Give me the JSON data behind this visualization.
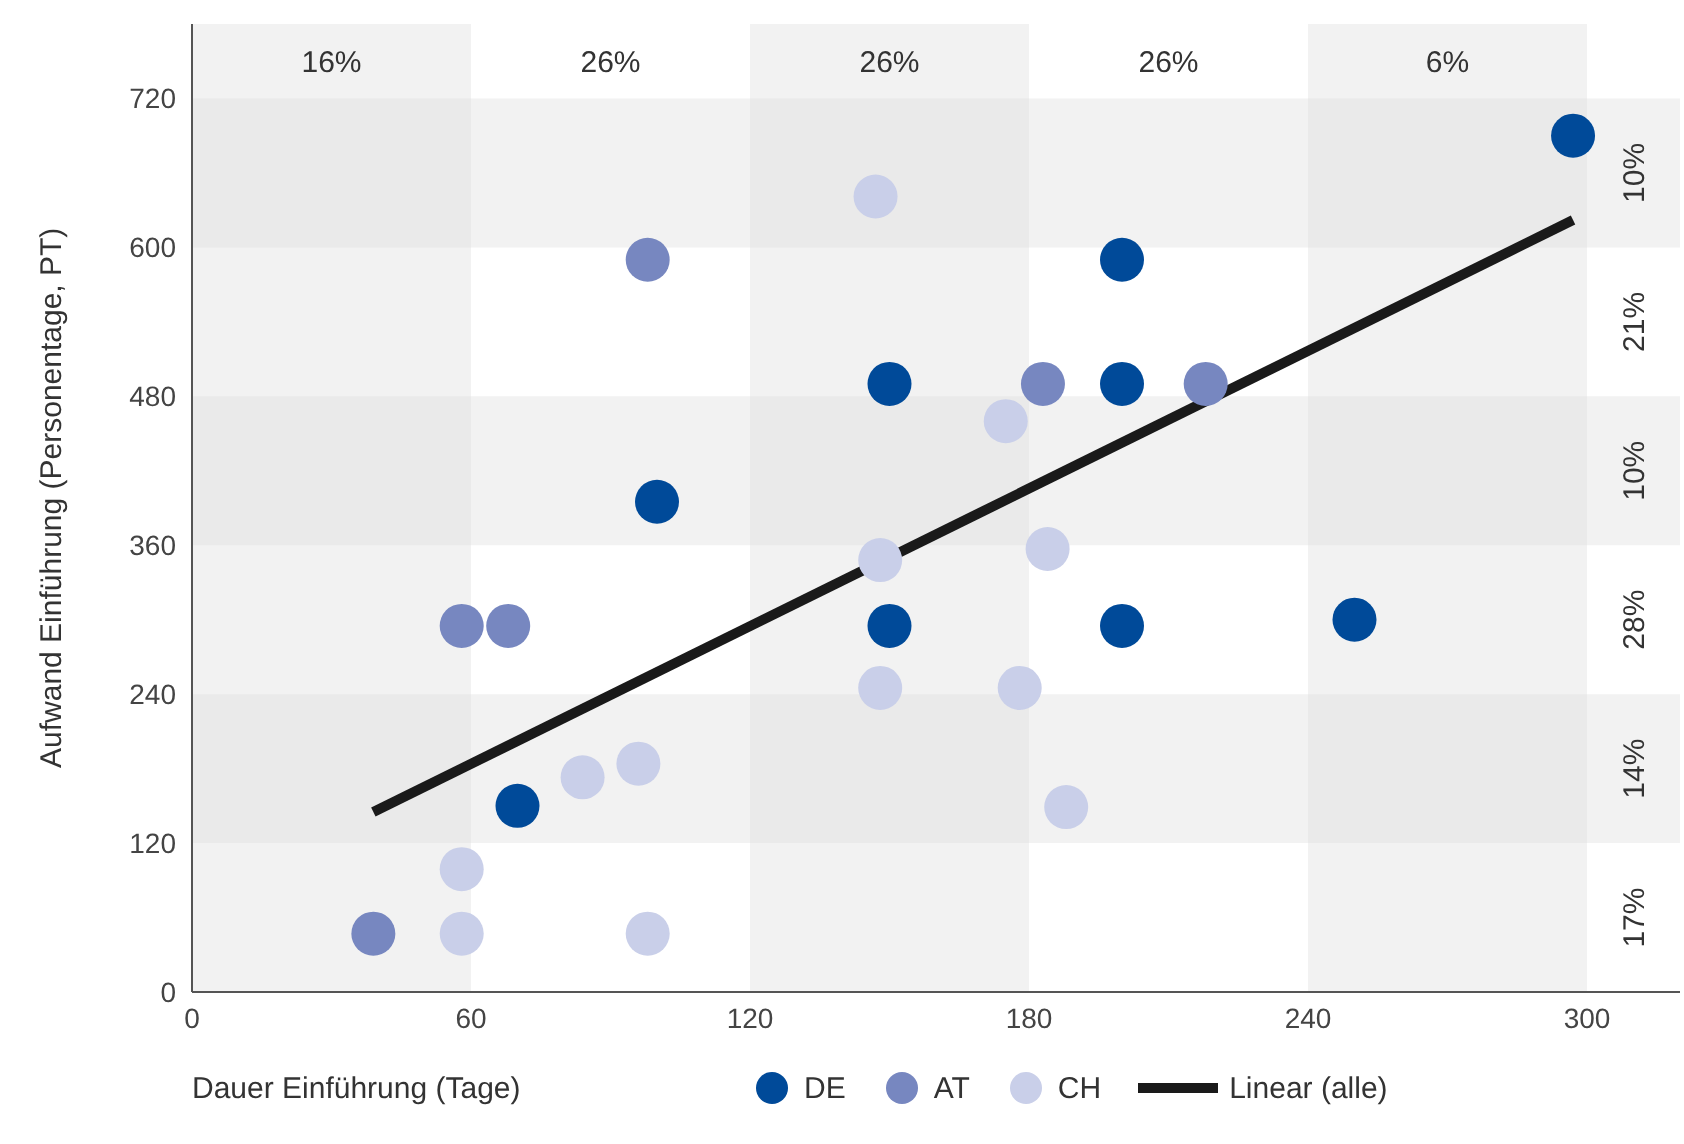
{
  "chart_data": {
    "type": "scatter",
    "xlabel": "Dauer Einführung (Tage)",
    "ylabel": "Aufwand Einführung (Personentage, PT)",
    "xlim": [
      0,
      320
    ],
    "xticks": [
      0,
      60,
      120,
      180,
      240,
      300
    ],
    "ylim": [
      0,
      780
    ],
    "yticks": [
      0,
      120,
      240,
      360,
      480,
      600,
      720
    ],
    "marker": "circle",
    "legend": "bottom",
    "series": [
      {
        "name": "DE",
        "color": "#004a99",
        "x": [
          70,
          100,
          150,
          150,
          200,
          200,
          200,
          250,
          297
        ],
        "values": [
          150,
          395,
          490,
          295,
          590,
          490,
          295,
          300,
          690
        ]
      },
      {
        "name": "AT",
        "color": "#7787c0",
        "x": [
          39,
          58,
          68,
          98,
          183,
          218
        ],
        "values": [
          47,
          295,
          295,
          590,
          490,
          490
        ]
      },
      {
        "name": "CH",
        "color": "#c9cfe9",
        "x": [
          147,
          148,
          148,
          96,
          84,
          58,
          58,
          98,
          175,
          184,
          178,
          188
        ],
        "values": [
          641,
          348,
          245,
          184,
          173,
          99,
          47,
          47,
          460,
          357,
          245,
          149
        ]
      },
      {
        "name": "Linear (alle)",
        "type": "line",
        "marker": "none",
        "color": "#1a1a1a",
        "x": [
          39,
          297
        ],
        "values": [
          145,
          622
        ]
      }
    ],
    "bands": [
      {
        "axis": "x",
        "from": 0,
        "to": 60,
        "color": "#dedede"
      },
      {
        "axis": "x",
        "from": 120,
        "to": 180,
        "color": "#dedede"
      },
      {
        "axis": "x",
        "from": 240,
        "to": 300,
        "color": "#dedede"
      },
      {
        "axis": "y",
        "from": 600,
        "to": 720,
        "color": "#dedede"
      },
      {
        "axis": "y",
        "from": 360,
        "to": 480,
        "color": "#dedede"
      },
      {
        "axis": "y",
        "from": 120,
        "to": 240,
        "color": "#dedede"
      }
    ],
    "annotations": [
      "16%",
      "26%",
      "26%",
      "26%",
      "6%",
      "10%",
      "21%",
      "10%",
      "28%",
      "14%",
      "17%"
    ]
  }
}
